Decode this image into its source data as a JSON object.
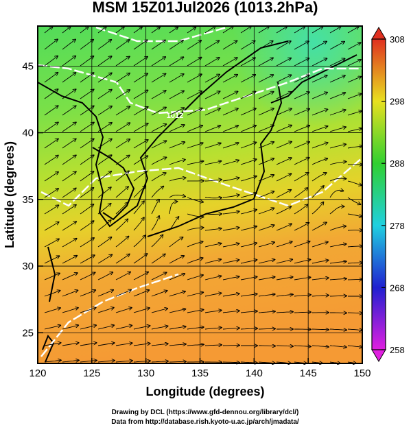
{
  "title": "MSM 15Z01Jul2026 (1013.2hPa)",
  "map": {
    "xlabel": "Longitude (degrees)",
    "ylabel": "Latitude  (degrees)",
    "xlim": [
      120,
      150
    ],
    "ylim": [
      22.7,
      48
    ],
    "xticks": [
      120,
      125,
      130,
      135,
      140,
      145,
      150
    ],
    "yticks": [
      25,
      30,
      35,
      40,
      45
    ],
    "contour_label": "1012"
  },
  "colorbar": {
    "lim": [
      258,
      308
    ],
    "ticks": [
      258,
      268,
      278,
      288,
      298,
      308
    ]
  },
  "footer": [
    "Drawing by DCL (https://www.gfd-dennou.org/library/dcl/)",
    "Data from http://database.rish.kyoto-u.ac.jp/arch/jmadata/"
  ]
}
